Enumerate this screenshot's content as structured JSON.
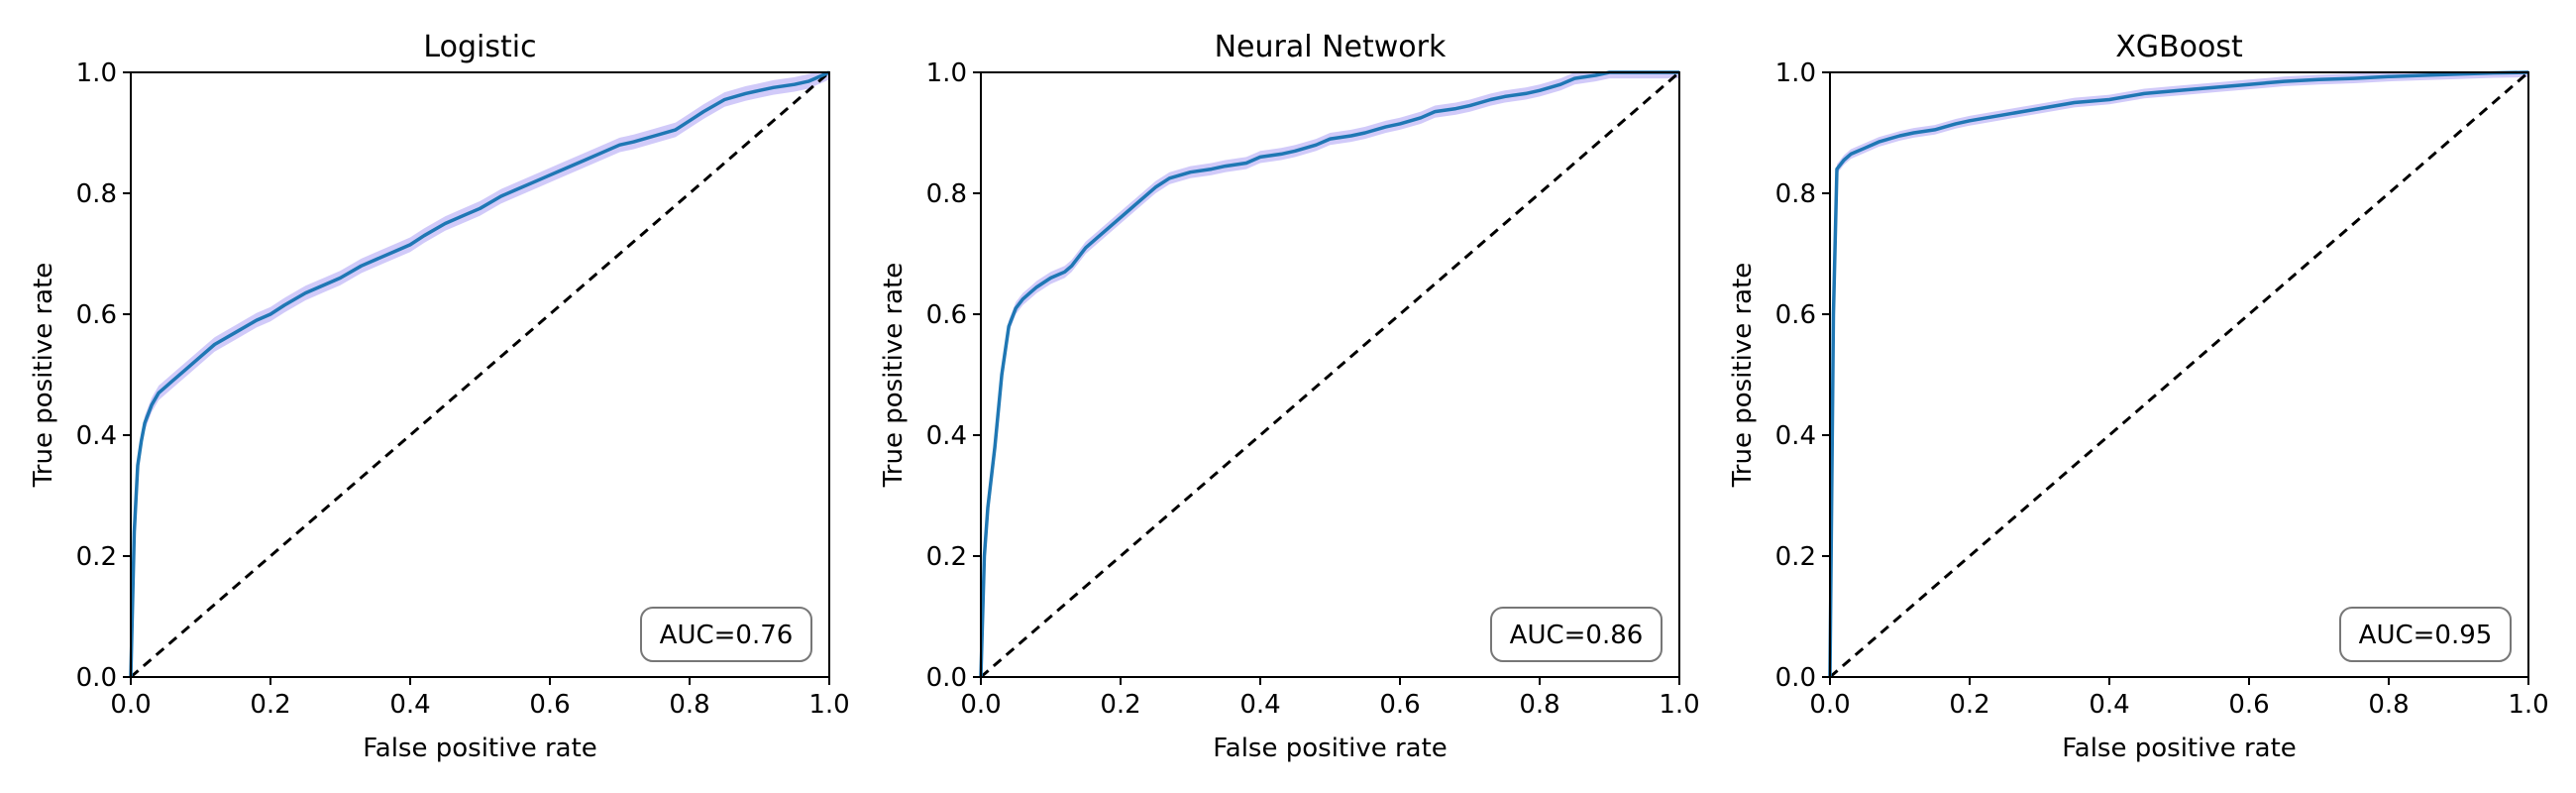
{
  "figure": {
    "colors": {
      "curve": "#1f77b4",
      "band": "#7b68ee",
      "diagonal": "#000000",
      "box_edge": "#777777",
      "frame": "#000000"
    }
  },
  "chart_data": [
    {
      "type": "line",
      "title": "Logistic",
      "xlabel": "False positive rate",
      "ylabel": "True positive rate",
      "xlim": [
        0,
        1
      ],
      "ylim": [
        0,
        1
      ],
      "xticks": [
        "0.0",
        "0.2",
        "0.4",
        "0.6",
        "0.8",
        "1.0"
      ],
      "yticks": [
        "0.0",
        "0.2",
        "0.4",
        "0.6",
        "0.8",
        "1.0"
      ],
      "annotation": "AUC=0.76",
      "annotation_position": "bottom-right",
      "grid": false,
      "band_halfwidth": 0.012,
      "series": [
        {
          "x": [
            0,
            0.005,
            0.01,
            0.015,
            0.02,
            0.03,
            0.04,
            0.05,
            0.06,
            0.08,
            0.1,
            0.12,
            0.15,
            0.18,
            0.2,
            0.22,
            0.25,
            0.28,
            0.3,
            0.33,
            0.35,
            0.38,
            0.4,
            0.42,
            0.45,
            0.48,
            0.5,
            0.53,
            0.55,
            0.58,
            0.6,
            0.62,
            0.65,
            0.68,
            0.7,
            0.72,
            0.75,
            0.78,
            0.8,
            0.82,
            0.85,
            0.88,
            0.9,
            0.92,
            0.95,
            0.97,
            0.98,
            0.99,
            1.0
          ],
          "y": [
            0,
            0.24,
            0.35,
            0.39,
            0.42,
            0.45,
            0.47,
            0.48,
            0.49,
            0.51,
            0.53,
            0.55,
            0.57,
            0.59,
            0.6,
            0.615,
            0.635,
            0.65,
            0.66,
            0.68,
            0.69,
            0.705,
            0.715,
            0.73,
            0.75,
            0.765,
            0.775,
            0.795,
            0.805,
            0.82,
            0.83,
            0.84,
            0.855,
            0.87,
            0.88,
            0.885,
            0.895,
            0.905,
            0.92,
            0.935,
            0.955,
            0.965,
            0.97,
            0.975,
            0.98,
            0.985,
            0.99,
            0.995,
            1.0
          ]
        }
      ]
    },
    {
      "type": "line",
      "title": "Neural Network",
      "xlabel": "False positive rate",
      "ylabel": "True positive rate",
      "xlim": [
        0,
        1
      ],
      "ylim": [
        0,
        1
      ],
      "xticks": [
        "0.0",
        "0.2",
        "0.4",
        "0.6",
        "0.8",
        "1.0"
      ],
      "yticks": [
        "0.0",
        "0.2",
        "0.4",
        "0.6",
        "0.8",
        "1.0"
      ],
      "annotation": "AUC=0.86",
      "annotation_position": "bottom-right",
      "grid": false,
      "band_halfwidth": 0.01,
      "series": [
        {
          "x": [
            0,
            0.005,
            0.01,
            0.02,
            0.03,
            0.04,
            0.05,
            0.06,
            0.07,
            0.08,
            0.1,
            0.12,
            0.13,
            0.15,
            0.17,
            0.2,
            0.22,
            0.25,
            0.27,
            0.3,
            0.33,
            0.35,
            0.38,
            0.4,
            0.43,
            0.45,
            0.48,
            0.5,
            0.53,
            0.55,
            0.58,
            0.6,
            0.63,
            0.65,
            0.68,
            0.7,
            0.73,
            0.75,
            0.78,
            0.8,
            0.83,
            0.85,
            0.88,
            0.9,
            0.95,
            1.0
          ],
          "y": [
            0,
            0.2,
            0.28,
            0.38,
            0.5,
            0.58,
            0.61,
            0.625,
            0.635,
            0.645,
            0.66,
            0.67,
            0.68,
            0.71,
            0.73,
            0.76,
            0.78,
            0.81,
            0.825,
            0.835,
            0.84,
            0.845,
            0.85,
            0.86,
            0.865,
            0.87,
            0.88,
            0.89,
            0.895,
            0.9,
            0.91,
            0.915,
            0.925,
            0.935,
            0.94,
            0.945,
            0.955,
            0.96,
            0.965,
            0.97,
            0.98,
            0.99,
            0.995,
            1.0,
            1.0,
            1.0
          ]
        }
      ]
    },
    {
      "type": "line",
      "title": "XGBoost",
      "xlabel": "False positive rate",
      "ylabel": "True positive rate",
      "xlim": [
        0,
        1
      ],
      "ylim": [
        0,
        1
      ],
      "xticks": [
        "0.0",
        "0.2",
        "0.4",
        "0.6",
        "0.8",
        "1.0"
      ],
      "yticks": [
        "0.0",
        "0.2",
        "0.4",
        "0.6",
        "0.8",
        "1.0"
      ],
      "annotation": "AUC=0.95",
      "annotation_position": "bottom-right",
      "grid": false,
      "band_halfwidth": 0.008,
      "series": [
        {
          "x": [
            0,
            0.005,
            0.01,
            0.02,
            0.03,
            0.05,
            0.07,
            0.1,
            0.12,
            0.15,
            0.18,
            0.2,
            0.25,
            0.3,
            0.35,
            0.4,
            0.45,
            0.5,
            0.55,
            0.6,
            0.65,
            0.7,
            0.75,
            0.8,
            0.85,
            0.9,
            0.95,
            1.0
          ],
          "y": [
            0,
            0.6,
            0.84,
            0.855,
            0.865,
            0.875,
            0.885,
            0.895,
            0.9,
            0.905,
            0.915,
            0.92,
            0.93,
            0.94,
            0.95,
            0.955,
            0.965,
            0.97,
            0.975,
            0.98,
            0.985,
            0.988,
            0.99,
            0.993,
            0.995,
            0.997,
            0.999,
            1.0
          ]
        }
      ]
    }
  ]
}
